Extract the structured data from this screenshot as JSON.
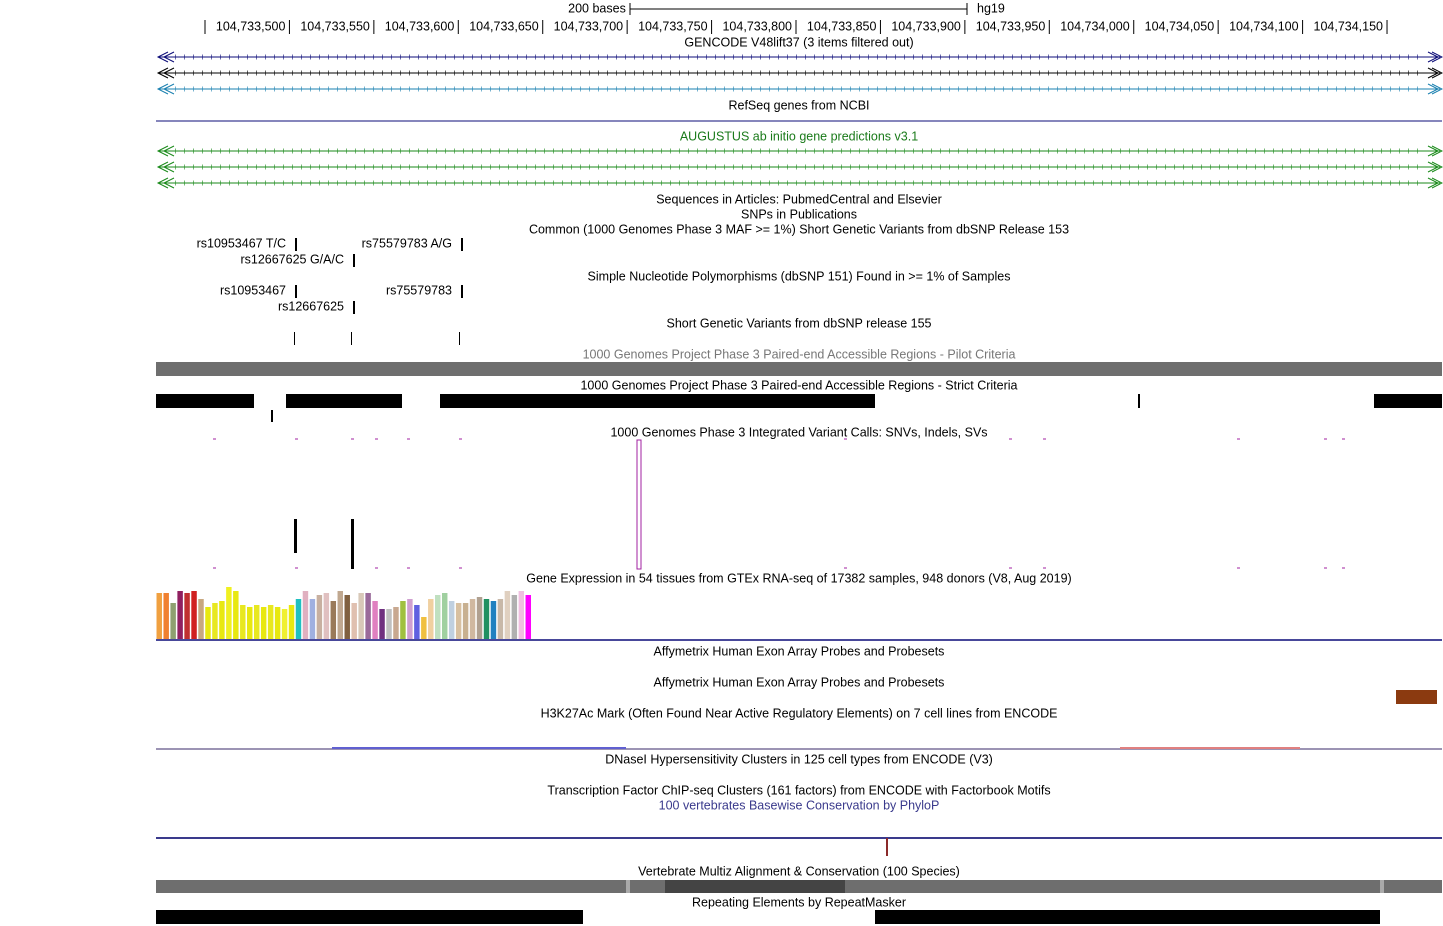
{
  "ruler": {
    "scale": "200 bases",
    "assembly": "hg19",
    "labels": [
      "104,733,500",
      "104,733,550",
      "104,733,600",
      "104,733,650",
      "104,733,700",
      "104,733,750",
      "104,733,800",
      "104,733,850",
      "104,733,900",
      "104,733,950",
      "104,734,000",
      "104,734,050",
      "104,734,100",
      "104,734,150"
    ]
  },
  "tracks": [
    {
      "title": "GENCODE V48lift37 (3 items filtered out)"
    },
    {
      "title": "RefSeq genes from NCBI"
    },
    {
      "title": "AUGUSTUS ab initio gene predictions v3.1"
    },
    {
      "title": "Sequences in Articles: PubmedCentral and Elsevier"
    },
    {
      "title": "SNPs in Publications"
    },
    {
      "title": "Common (1000 Genomes Phase 3 MAF >= 1%) Short Genetic Variants from dbSNP Release 153"
    },
    {
      "title": "Simple Nucleotide Polymorphisms (dbSNP 151) Found in >= 1% of Samples"
    },
    {
      "title": "Short Genetic Variants from dbSNP release 155"
    },
    {
      "title": "1000 Genomes Project Phase 3 Paired-end Accessible Regions - Pilot Criteria"
    },
    {
      "title": "1000 Genomes Project Phase 3 Paired-end Accessible Regions - Strict Criteria"
    },
    {
      "title": "1000 Genomes Phase 3 Integrated Variant Calls: SNVs, Indels, SVs"
    },
    {
      "title": "Gene Expression in 54 tissues from GTEx RNA-seq of 17382 samples, 948 donors (V8, Aug 2019)"
    },
    {
      "title": "Affymetrix Human Exon Array Probes and Probesets"
    },
    {
      "title": "Affymetrix Human Exon Array Probes and Probesets"
    },
    {
      "title": "H3K27Ac Mark (Often Found Near Active Regulatory Elements) on 7 cell lines from ENCODE"
    },
    {
      "title": "DNaseI Hypersensitivity Clusters in 125 cell types from ENCODE (V3)"
    },
    {
      "title": "Transcription Factor ChIP-seq Clusters (161 factors) from ENCODE with Factorbook Motifs"
    },
    {
      "title": "100 vertebrates Basewise Conservation by PhyloP"
    },
    {
      "title": "Vertebrate Multiz Alignment & Conservation (100 Species)"
    },
    {
      "title": "Repeating Elements by RepeatMasker"
    }
  ],
  "snps153": [
    "rs10953467 T/C",
    "rs75579783 A/G",
    "rs12667625 G/A/C"
  ],
  "snps151": [
    "rs10953467",
    "rs75579783",
    "rs12667625"
  ],
  "gtex": {
    "values": [
      46,
      46,
      36,
      48,
      46,
      48,
      40,
      32,
      36,
      38,
      52,
      48,
      34,
      32,
      34,
      32,
      34,
      32,
      30,
      34,
      40,
      48,
      40,
      44,
      46,
      38,
      48,
      44,
      36,
      46,
      46,
      38,
      30,
      30,
      32,
      38,
      40,
      34,
      22,
      40,
      44,
      46,
      38,
      36,
      36,
      40,
      42,
      40,
      38,
      40,
      48,
      44,
      48,
      44
    ],
    "colors": [
      "#f0a040",
      "#f08030",
      "#8fa070",
      "#902060",
      "#c03030",
      "#d02020",
      "#c8a880",
      "#e8e810",
      "#e8e820",
      "#e8e810",
      "#f0f020",
      "#e8e810",
      "#e8e820",
      "#e8e810",
      "#e8e820",
      "#e8e810",
      "#e8e820",
      "#e8e810",
      "#f0f030",
      "#e8e810",
      "#20c0c0",
      "#e0b0c0",
      "#a0b0e0",
      "#c8b0a0",
      "#e0c0c0",
      "#9a7a5a",
      "#c0a890",
      "#806040",
      "#e0c0b0",
      "#d8c8b8",
      "#9a6a9a",
      "#e080c0",
      "#703080",
      "#c0c0c0",
      "#c8a890",
      "#a0c040",
      "#d0a0d0",
      "#6060e0",
      "#f0c040",
      "#f0d0a0",
      "#c0e0c0",
      "#a0d0a0",
      "#c0d0e0",
      "#d8c0a0",
      "#c8b090",
      "#d0b8a0",
      "#b0a090",
      "#209060",
      "#2080c0",
      "#c8b8a8",
      "#e0d0c0",
      "#b0b0b0",
      "#f0c0e0",
      "#ff00ff"
    ]
  }
}
